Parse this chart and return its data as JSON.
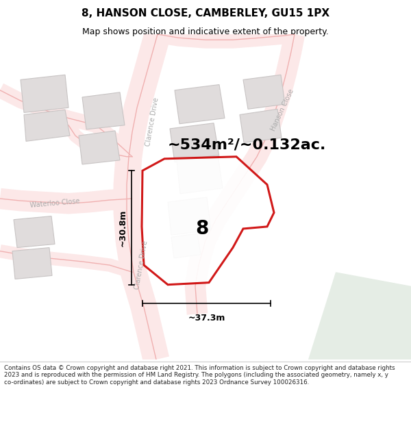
{
  "title": "8, HANSON CLOSE, CAMBERLEY, GU15 1PX",
  "subtitle": "Map shows position and indicative extent of the property.",
  "area_text": "~534m²/~0.132ac.",
  "dim_width": "~37.3m",
  "dim_height": "~30.8m",
  "plot_number": "8",
  "footer": "Contains OS data © Crown copyright and database right 2021. This information is subject to Crown copyright and database rights 2023 and is reproduced with the permission of HM Land Registry. The polygons (including the associated geometry, namely x, y co-ordinates) are subject to Crown copyright and database rights 2023 Ordnance Survey 100026316.",
  "bg_color": "#ffffff",
  "map_bg": "#ffffff",
  "road_outline_color": "#f0b0b0",
  "road_fill_color": "#f8e8e8",
  "building_color": "#e0dcdc",
  "building_edge": "#c8c4c4",
  "plot_fill": "#ffffff",
  "plot_edge": "#cc0000",
  "dim_color": "#000000",
  "title_color": "#000000",
  "road_label_color": "#aaaaaa",
  "green_area": "#e8ede8",
  "figsize": [
    6.0,
    6.25
  ],
  "dpi": 100,
  "title_fontsize": 11,
  "subtitle_fontsize": 9,
  "footer_fontsize": 6.3,
  "area_fontsize": 16,
  "number_fontsize": 20,
  "dim_fontsize": 9
}
